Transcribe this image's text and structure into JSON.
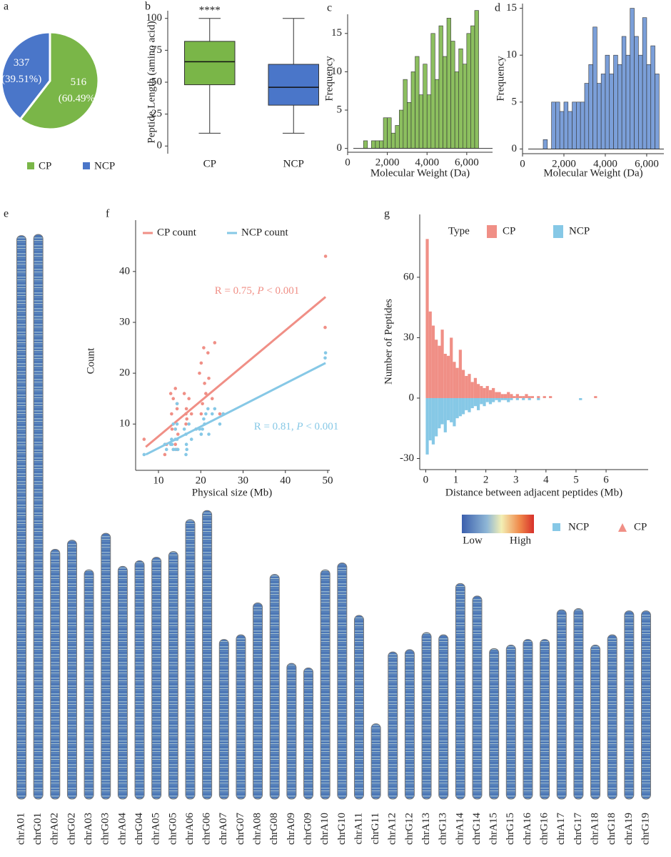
{
  "chart_data": [
    {
      "type": "pie",
      "panel": "a",
      "categories": [
        "CP",
        "NCP"
      ],
      "values": [
        516,
        337
      ],
      "percents": [
        60.49,
        39.51
      ],
      "percent_labels": [
        "(60.49%)",
        "(39.51%)"
      ],
      "colors": [
        "#7ab648",
        "#4a76c9"
      ]
    },
    {
      "type": "box",
      "panel": "b",
      "ylabel": "Peptide Length (amino acid)",
      "categories": [
        "CP",
        "NCP"
      ],
      "colors": [
        "#7ab648",
        "#4a76c9"
      ],
      "boxes": [
        {
          "min": 10,
          "q1": 48,
          "median": 66,
          "q3": 82,
          "max": 100
        },
        {
          "min": 10,
          "q1": 32,
          "median": 46,
          "q3": 64,
          "max": 100
        }
      ],
      "annotation": "****",
      "ylim": [
        -6,
        106
      ],
      "yticks": [
        0,
        25,
        50,
        75,
        100
      ]
    },
    {
      "type": "histogram",
      "panel": "c",
      "xlabel": "Molecular Weight (Da)",
      "ylabel": "Frequency",
      "color": "#8cbf5f",
      "bins": [
        800,
        1000,
        1200,
        1400,
        1600,
        1800,
        2000,
        2200,
        2400,
        2600,
        2800,
        3000,
        3200,
        3400,
        3600,
        3800,
        4000,
        4200,
        4400,
        4600,
        4800,
        5000,
        5200,
        5400,
        5600,
        5800,
        6000,
        6200,
        6400,
        6600
      ],
      "values": [
        1,
        0,
        1,
        1,
        1,
        4,
        4,
        2,
        3,
        5,
        9,
        6,
        10,
        12,
        7,
        11,
        7,
        15,
        9,
        16,
        12,
        17,
        14,
        10,
        13,
        11,
        15,
        16,
        18
      ],
      "xlim": [
        0,
        7300
      ],
      "xticks": [
        0,
        {
          "value": 2000,
          "label": "2,000"
        },
        {
          "value": 4000,
          "label": "4,000"
        },
        {
          "value": 6000,
          "label": "6,000"
        }
      ],
      "ylim": [
        -0.5,
        17.5
      ],
      "yticks": [
        0,
        5,
        10,
        15
      ]
    },
    {
      "type": "histogram",
      "panel": "d",
      "xlabel": "Molecular Weight (Da)",
      "ylabel": "Frequency",
      "color": "#7b9fd9",
      "bins": [
        1000,
        1200,
        1400,
        1600,
        1800,
        2000,
        2200,
        2400,
        2600,
        2800,
        3000,
        3200,
        3400,
        3600,
        3800,
        4000,
        4200,
        4400,
        4600,
        4800,
        5000,
        5200,
        5400,
        5600,
        5800,
        6000,
        6200,
        6400,
        6600
      ],
      "values": [
        1,
        0,
        5,
        5,
        4,
        5,
        4,
        5,
        5,
        5,
        7,
        9,
        13,
        7,
        8,
        10,
        8,
        10,
        9,
        12,
        10,
        15,
        12,
        10,
        14,
        9,
        11,
        8,
        7
      ],
      "xlim": [
        0,
        6830
      ],
      "xticks": [
        0,
        {
          "value": 2000,
          "label": "2,000"
        },
        {
          "value": 4000,
          "label": "4,000"
        },
        {
          "value": 6000,
          "label": "6,000"
        }
      ],
      "ylim": [
        -0.5,
        15.5
      ],
      "yticks": [
        0,
        5,
        10,
        15
      ]
    },
    {
      "type": "ideogram",
      "panel": "e",
      "categories": [
        "chrA01",
        "chrG01",
        "chrA02",
        "chrG02",
        "chrA03",
        "chrG03",
        "chrA04",
        "chrG04",
        "chrA05",
        "chrG05",
        "chrA06",
        "chrG06",
        "chrA07",
        "chrG07",
        "chrA08",
        "chrG08",
        "chrA09",
        "chrG09",
        "chrA10",
        "chrG10",
        "chrA11",
        "chrG11",
        "chrA12",
        "chrG12",
        "chrA13",
        "chrG13",
        "chrA14",
        "chrG14",
        "chrA15",
        "chrG15",
        "chrA16",
        "chrG16",
        "chrA17",
        "chrG17",
        "chrA18",
        "chrG18",
        "chrA19",
        "chrG19"
      ],
      "values": [
        49.4,
        49.5,
        21.9,
        22.7,
        20.1,
        23.3,
        20.4,
        20.9,
        21.2,
        21.7,
        24.5,
        25.3,
        14.0,
        14.4,
        17.2,
        19.7,
        11.9,
        11.5,
        20.1,
        20.7,
        16.1,
        6.6,
        12.9,
        13.1,
        14.6,
        14.4,
        18.9,
        17.8,
        13.2,
        13.5,
        14.0,
        14.0,
        16.6,
        16.7,
        13.5,
        14.4,
        16.5,
        16.5
      ],
      "density_labels": [
        "Low",
        "High"
      ],
      "series": [
        {
          "name": "NCP",
          "color": "#86c8e6",
          "marker": "square"
        },
        {
          "name": "CP",
          "color": "#f08f86",
          "marker": "triangle"
        }
      ]
    },
    {
      "type": "scatter",
      "panel": "f",
      "xlabel": "Physical size (Mb)",
      "ylabel": "Count",
      "x": [
        49.4,
        49.5,
        21.9,
        22.7,
        20.1,
        23.3,
        20.4,
        20.9,
        21.2,
        21.7,
        24.5,
        25.3,
        14.0,
        14.4,
        17.2,
        19.7,
        11.9,
        11.5,
        20.1,
        20.7,
        16.1,
        6.6,
        12.9,
        13.1,
        14.6,
        14.4,
        18.9,
        17.8,
        13.2,
        13.5,
        14.0,
        14.0,
        16.6,
        16.7,
        13.5,
        14.4,
        16.5,
        16.5
      ],
      "series": [
        {
          "name": "CP count",
          "color": "#f08f86",
          "values": [
            29,
            43,
            19,
            15,
            12,
            26,
            14,
            18,
            16,
            24,
            12,
            12,
            9,
            13,
            15,
            20,
            6,
            4,
            22,
            25,
            16,
            7,
            16,
            12,
            8,
            14,
            9,
            12,
            9,
            5,
            17,
            6,
            13,
            11,
            15,
            5,
            10,
            12
          ],
          "fit": {
            "x": [
              7,
              49.5
            ],
            "y": [
              5.5,
              35
            ]
          },
          "annotation": [
            "R = 0.75, ",
            "P",
            " < 0.001"
          ]
        },
        {
          "name": "NCP count",
          "color": "#86c8e6",
          "values": [
            23,
            24,
            8,
            12,
            8,
            13,
            9,
            10,
            12,
            13,
            10,
            12,
            5,
            7,
            10,
            9,
            5,
            6,
            8,
            11,
            9,
            4,
            6,
            7,
            5,
            10,
            9,
            7,
            6,
            5,
            9,
            7,
            6,
            5,
            10,
            14,
            8,
            4
          ],
          "fit": {
            "x": [
              7,
              49.5
            ],
            "y": [
              4,
              22
            ]
          },
          "annotation": [
            "R = 0.81, ",
            "P",
            " < 0.001"
          ]
        }
      ],
      "xlim": [
        4.6,
        50.5
      ],
      "xticks": [
        10,
        20,
        30,
        40,
        50
      ],
      "ylim": [
        0.9,
        50.1
      ],
      "yticks": [
        10,
        20,
        30,
        40
      ]
    },
    {
      "type": "histogram",
      "panel": "g",
      "xlabel": "Distance between adjacent peptides (Mb)",
      "ylabel": "Number of Peptides",
      "legend_title": "Type",
      "bins": [
        0,
        0.1,
        0.2,
        0.3,
        0.4,
        0.5,
        0.6,
        0.7,
        0.8,
        0.9,
        1,
        1.1,
        1.2,
        1.3,
        1.4,
        1.5,
        1.6,
        1.7,
        1.8,
        1.9,
        2,
        2.1,
        2.2,
        2.3,
        2.4,
        2.5,
        2.6,
        2.7,
        2.8,
        2.9,
        3,
        3.1,
        3.2,
        3.3,
        3.4,
        3.5,
        3.6,
        3.7,
        3.8,
        3.9,
        4,
        4.1,
        4.2,
        4.3,
        4.4,
        4.5,
        4.6,
        4.7,
        4.8,
        4.9,
        5,
        5.1,
        5.2,
        5.3,
        5.4,
        5.5,
        5.6,
        5.7,
        5.8
      ],
      "series": [
        {
          "name": "CP",
          "color": "#f08f86",
          "values": [
            79,
            43,
            36,
            29,
            26,
            34,
            22,
            21,
            30,
            18,
            15,
            24,
            14,
            11,
            12,
            8,
            10,
            7,
            6,
            5,
            6,
            4,
            5,
            3,
            3,
            2,
            2,
            3,
            2,
            1,
            2,
            1,
            1,
            2,
            1,
            1,
            0,
            1,
            0,
            1,
            0,
            1,
            0,
            0,
            0,
            0,
            0,
            0,
            0,
            0,
            0,
            0,
            0,
            0,
            0,
            0,
            1,
            0
          ]
        },
        {
          "name": "NCP",
          "color": "#86c8e6",
          "values": [
            -28,
            -21,
            -23,
            -19,
            -15,
            -13,
            -17,
            -11,
            -12,
            -14,
            -10,
            -9,
            -8,
            -6,
            -7,
            -5,
            -4,
            -6,
            -3,
            -4,
            -2,
            -3,
            -2,
            -1,
            -2,
            -1,
            -1,
            -2,
            -1,
            0,
            -1,
            0,
            -1,
            0,
            -1,
            0,
            0,
            -1,
            0,
            0,
            0,
            0,
            0,
            0,
            0,
            0,
            0,
            0,
            0,
            0,
            0,
            -1,
            0,
            0,
            0,
            0,
            0,
            0
          ]
        }
      ],
      "xlim": [
        -0.2,
        7.4
      ],
      "xticks": [
        0,
        1,
        2,
        3,
        4,
        5,
        6
      ],
      "ylim": [
        -35.5,
        91.2
      ],
      "yticks": [
        -30,
        0,
        30,
        60
      ]
    }
  ]
}
